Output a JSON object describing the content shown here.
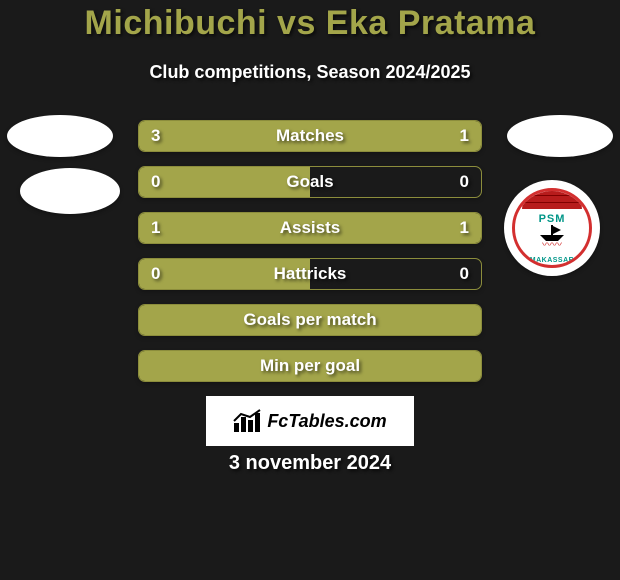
{
  "colors": {
    "background": "#1a1a1a",
    "title": "#a3a54a",
    "accent": "#a3a54a",
    "accent_border": "#8c8d3c",
    "white": "#ffffff"
  },
  "title": "Michibuchi vs Eka Pratama",
  "subtitle": "Club competitions, Season 2024/2025",
  "badge_right": {
    "top_text": "PSM",
    "bottom_text": "MAKASSAR"
  },
  "rows": [
    {
      "label": "Matches",
      "left": "3",
      "right": "1",
      "left_pct": 75,
      "right_pct": 25
    },
    {
      "label": "Goals",
      "left": "0",
      "right": "0",
      "left_pct": 50,
      "right_pct": 0
    },
    {
      "label": "Assists",
      "left": "1",
      "right": "1",
      "left_pct": 50,
      "right_pct": 50
    },
    {
      "label": "Hattricks",
      "left": "0",
      "right": "0",
      "left_pct": 50,
      "right_pct": 0
    },
    {
      "label": "Goals per match",
      "left": "",
      "right": "",
      "left_pct": 100,
      "right_pct": 0
    },
    {
      "label": "Min per goal",
      "left": "",
      "right": "",
      "left_pct": 100,
      "right_pct": 0
    }
  ],
  "row_style": {
    "height": 32,
    "gap": 14,
    "border_radius": 7,
    "label_fontsize": 17
  },
  "watermark": "FcTables.com",
  "date": "3 november 2024"
}
